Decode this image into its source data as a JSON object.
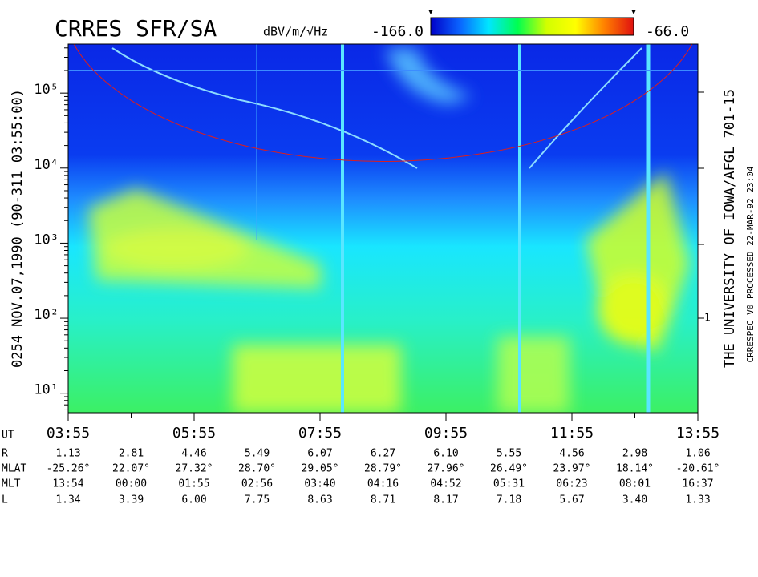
{
  "chart_data": {
    "type": "spectrogram",
    "title": "CRRES SFR/SA",
    "colorbar_label": "dBV/m/√Hz",
    "zlim": [
      -166,
      -66
    ],
    "zticks": [
      {
        "value": -166,
        "label": "-166.0"
      },
      {
        "value": -66,
        "label": "-66.0"
      }
    ],
    "colormap": [
      "#0000c8",
      "#0a64ff",
      "#00e6ff",
      "#00ff50",
      "#d2ff00",
      "#ffff00",
      "#ff8000",
      "#e01010"
    ],
    "log_scale": true,
    "ylim": [
      5.5,
      450000
    ],
    "yticks": [
      {
        "value": 10,
        "label": "10¹"
      },
      {
        "value": 100,
        "label": "10²"
      },
      {
        "value": 1000,
        "label": "10³"
      },
      {
        "value": 10000,
        "label": "10⁴"
      },
      {
        "value": 100000,
        "label": "10⁵"
      }
    ],
    "right_axis_label": "1",
    "left_caption": "0254  NOV.07,1990  (90-311 03:55:00)",
    "right_caption": "THE UNIVERSITY OF IOWA/AFGL 701-15",
    "right_caption_2": "CRRESPEC V0   PROCESSED 22-MAR-92  23:04",
    "x_label": "UT",
    "x_tick_labels": [
      "03:55",
      "05:55",
      "07:55",
      "09:55",
      "11:55",
      "13:55"
    ],
    "ephemeris": [
      {
        "label": "R",
        "values": [
          "1.13",
          "2.81",
          "4.46",
          "5.49",
          "6.07",
          "6.27",
          "6.10",
          "5.55",
          "4.56",
          "2.98",
          "1.06"
        ]
      },
      {
        "label": "MLAT",
        "values": [
          "-25.26°",
          "22.07°",
          "27.32°",
          "28.70°",
          "29.05°",
          "28.79°",
          "27.96°",
          "26.49°",
          "23.97°",
          "18.14°",
          "-20.61°"
        ]
      },
      {
        "label": "MLT",
        "values": [
          "13:54",
          "00:00",
          "01:55",
          "02:56",
          "03:40",
          "04:16",
          "04:52",
          "05:31",
          "06:23",
          "08:01",
          "16:37"
        ]
      },
      {
        "label": "L",
        "values": [
          "1.34",
          "3.39",
          "6.00",
          "7.75",
          "8.63",
          "8.71",
          "8.17",
          "7.18",
          "5.67",
          "3.40",
          "1.33"
        ]
      }
    ]
  }
}
